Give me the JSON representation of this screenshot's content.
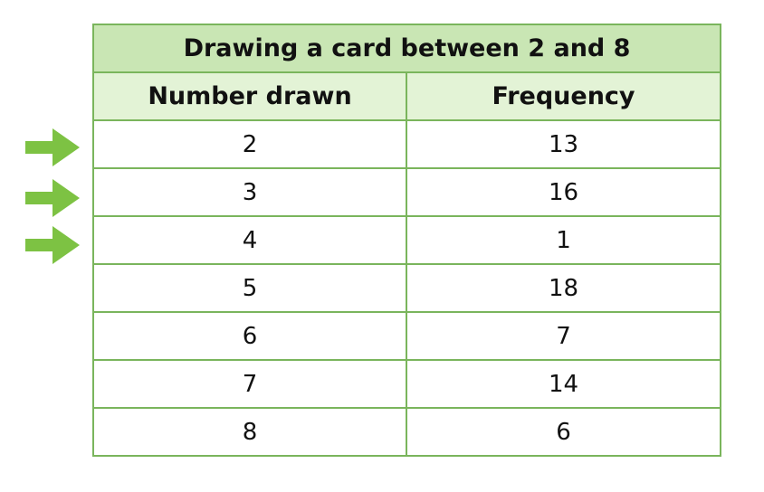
{
  "chart_data": {
    "type": "table",
    "title": "Drawing a card between 2 and 8",
    "columns": [
      "Number drawn",
      "Frequency"
    ],
    "rows": [
      {
        "number": "2",
        "frequency": "13"
      },
      {
        "number": "3",
        "frequency": "16"
      },
      {
        "number": "4",
        "frequency": "1"
      },
      {
        "number": "5",
        "frequency": "18"
      },
      {
        "number": "6",
        "frequency": "7"
      },
      {
        "number": "7",
        "frequency": "14"
      },
      {
        "number": "8",
        "frequency": "6"
      }
    ],
    "arrows": {
      "icon": "arrow-right-icon",
      "color": "#7dc243",
      "marked_numbers": [
        "2",
        "3",
        "4"
      ]
    },
    "colors": {
      "border": "#7ab55c",
      "title_background": "#c9e6b4",
      "header_background": "#e3f3d6"
    }
  }
}
